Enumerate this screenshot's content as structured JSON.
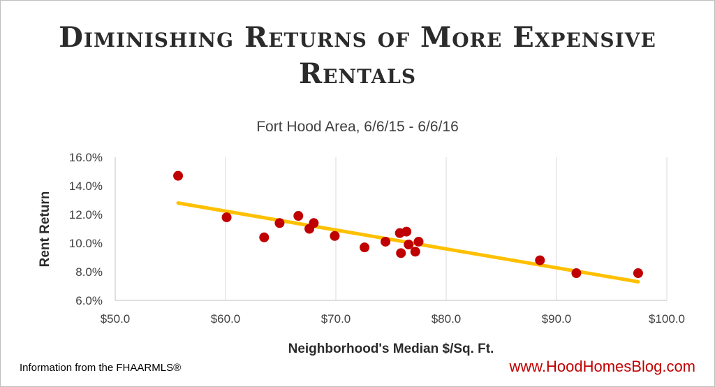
{
  "chart_data": {
    "type": "scatter",
    "title": "Diminishing Returns of More Expensive Rentals",
    "subtitle": "Fort Hood Area, 6/6/15 - 6/6/16",
    "xlabel": "Neighborhood's Median $/Sq. Ft.",
    "ylabel": "Rent Return",
    "xlim": [
      50,
      100
    ],
    "ylim": [
      6,
      16
    ],
    "xticks": [
      50,
      60,
      70,
      80,
      90,
      100
    ],
    "yticks": [
      6,
      8,
      10,
      12,
      14,
      16
    ],
    "xtick_labels": [
      "$50.0",
      "$60.0",
      "$70.0",
      "$80.0",
      "$90.0",
      "$100.0"
    ],
    "ytick_labels": [
      "6.0%",
      "8.0%",
      "10.0%",
      "12.0%",
      "14.0%",
      "16.0%"
    ],
    "grid": "vertical",
    "points": [
      {
        "x": 55.7,
        "y": 14.7
      },
      {
        "x": 60.1,
        "y": 11.8
      },
      {
        "x": 63.5,
        "y": 10.4
      },
      {
        "x": 64.9,
        "y": 11.4
      },
      {
        "x": 66.6,
        "y": 11.9
      },
      {
        "x": 67.6,
        "y": 11.0
      },
      {
        "x": 68.0,
        "y": 11.4
      },
      {
        "x": 69.9,
        "y": 10.5
      },
      {
        "x": 72.6,
        "y": 9.7
      },
      {
        "x": 74.5,
        "y": 10.1
      },
      {
        "x": 75.8,
        "y": 10.7
      },
      {
        "x": 75.9,
        "y": 9.3
      },
      {
        "x": 76.4,
        "y": 10.8
      },
      {
        "x": 76.6,
        "y": 9.9
      },
      {
        "x": 77.2,
        "y": 9.4
      },
      {
        "x": 77.5,
        "y": 10.1
      },
      {
        "x": 88.5,
        "y": 8.8
      },
      {
        "x": 91.8,
        "y": 7.9
      },
      {
        "x": 97.4,
        "y": 7.9
      }
    ],
    "trendline": {
      "x": [
        55.7,
        97.4
      ],
      "y": [
        12.8,
        7.3
      ]
    },
    "colors": {
      "points": "#c00000",
      "trendline": "#ffc000",
      "grid": "#d9d9d9",
      "axis": "#bfbfbf"
    }
  },
  "footer": {
    "source": "Information from the FHAARMLS®",
    "website": "www.HoodHomesBlog.com"
  }
}
